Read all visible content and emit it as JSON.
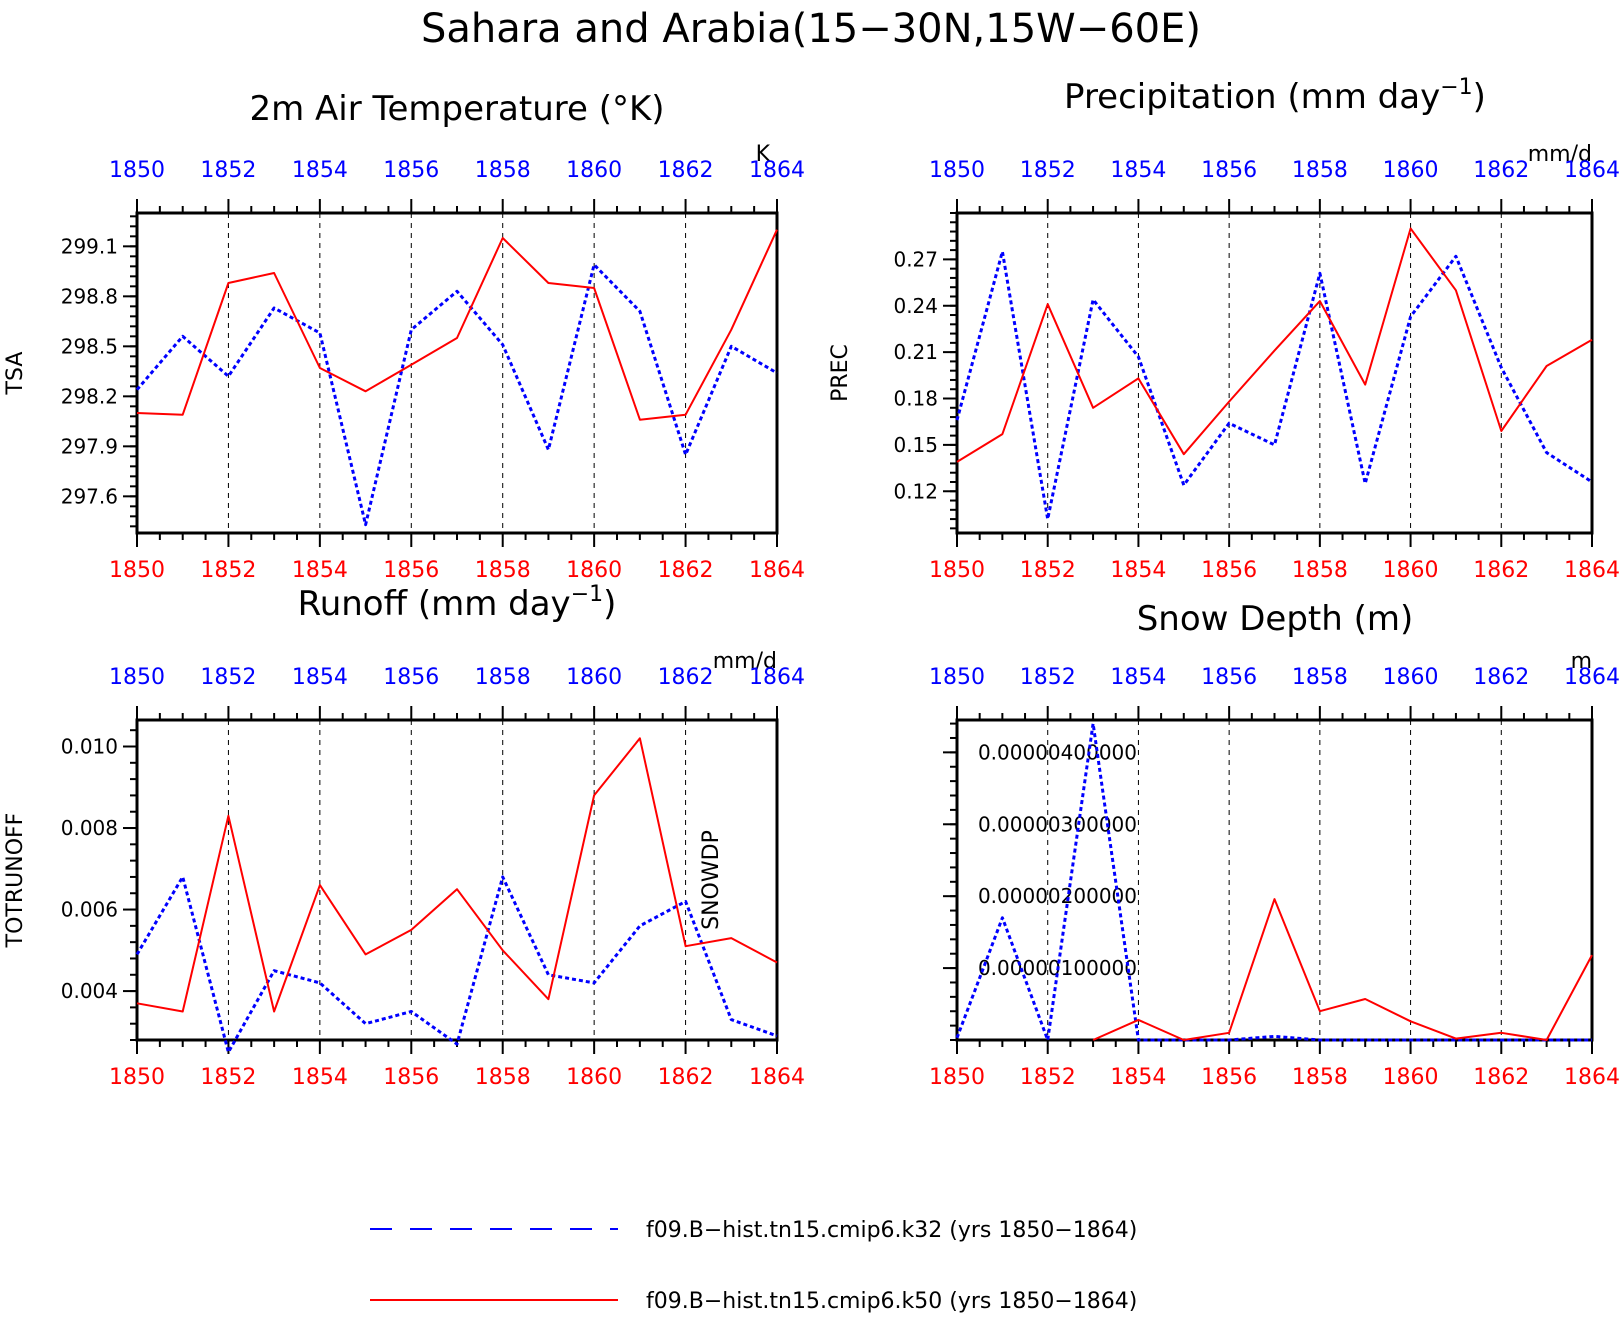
{
  "figure_title": "Sahara and Arabia(15−30N,15W−60E)",
  "colors": {
    "k32": "#0000ff",
    "k50": "#ff0000",
    "top_ticks": "#0000ff",
    "bottom_ticks": "#ff0000"
  },
  "legend": {
    "entries": [
      {
        "label": "f09.B−hist.tn15.cmip6.k32 (yrs 1850−1864)",
        "style": "dashed-blue"
      },
      {
        "label": "f09.B−hist.tn15.cmip6.k50 (yrs 1850−1864)",
        "style": "solid-red"
      }
    ]
  },
  "chart_data": [
    {
      "type": "line",
      "title": "2m Air Temperature (°K)",
      "ylabel": "TSA",
      "unit": "K",
      "xlim": [
        1850,
        1864
      ],
      "ylim": [
        297.38,
        299.3
      ],
      "x_ticks": [
        "1850",
        "1852",
        "1854",
        "1856",
        "1858",
        "1860",
        "1862",
        "1864"
      ],
      "y_ticks": [
        "297.6",
        "297.9",
        "298.2",
        "298.5",
        "298.8",
        "299.1"
      ],
      "grid": "vertical dashed at major x ticks",
      "x": [
        1850,
        1851,
        1852,
        1853,
        1854,
        1855,
        1856,
        1857,
        1858,
        1859,
        1860,
        1861,
        1862,
        1863,
        1864
      ],
      "series": [
        {
          "name": "f09.B−hist.tn15.cmip6.k32",
          "style": "dashed",
          "values": [
            298.24,
            298.56,
            298.32,
            298.73,
            298.58,
            297.43,
            298.6,
            298.83,
            298.51,
            297.88,
            298.99,
            298.71,
            297.85,
            298.5,
            298.34
          ]
        },
        {
          "name": "f09.B−hist.tn15.cmip6.k50",
          "style": "solid",
          "values": [
            298.1,
            298.09,
            298.88,
            298.94,
            298.37,
            298.23,
            298.39,
            298.55,
            299.15,
            298.88,
            298.85,
            298.06,
            298.09,
            298.6,
            299.2
          ]
        }
      ]
    },
    {
      "type": "line",
      "title": "Precipitation (mm day",
      "title_superscript": "−1",
      "title_suffix": ")",
      "ylabel": "PREC",
      "unit": "mm/d",
      "xlim": [
        1850,
        1864
      ],
      "ylim": [
        0.093,
        0.3
      ],
      "x_ticks": [
        "1850",
        "1852",
        "1854",
        "1856",
        "1858",
        "1860",
        "1862",
        "1864"
      ],
      "y_ticks": [
        "0.12",
        "0.15",
        "0.18",
        "0.21",
        "0.24",
        "0.27"
      ],
      "grid": "vertical dashed at major x ticks",
      "x": [
        1850,
        1851,
        1852,
        1853,
        1854,
        1855,
        1856,
        1857,
        1858,
        1859,
        1860,
        1861,
        1862,
        1863,
        1864
      ],
      "series": [
        {
          "name": "f09.B−hist.tn15.cmip6.k32",
          "style": "dashed",
          "values": [
            0.166,
            0.275,
            0.102,
            0.244,
            0.207,
            0.124,
            0.164,
            0.15,
            0.261,
            0.125,
            0.233,
            0.272,
            0.2,
            0.145,
            0.126
          ]
        },
        {
          "name": "f09.B−hist.tn15.cmip6.k50",
          "style": "solid",
          "values": [
            0.139,
            0.157,
            0.241,
            0.174,
            0.193,
            0.144,
            0.178,
            0.211,
            0.243,
            0.189,
            0.29,
            0.25,
            0.159,
            0.201,
            0.218
          ]
        }
      ]
    },
    {
      "type": "line",
      "title": "Runoff (mm day",
      "title_superscript": "−1",
      "title_suffix": ")",
      "ylabel": "TOTRUNOFF",
      "unit": "mm/d",
      "xlim": [
        1850,
        1864
      ],
      "ylim": [
        0.0028,
        0.01065
      ],
      "x_ticks": [
        "1850",
        "1852",
        "1854",
        "1856",
        "1858",
        "1860",
        "1862",
        "1864"
      ],
      "y_ticks": [
        "0.004",
        "0.006",
        "0.008",
        "0.010"
      ],
      "grid": "vertical dashed at major x ticks",
      "x": [
        1850,
        1851,
        1852,
        1853,
        1854,
        1855,
        1856,
        1857,
        1858,
        1859,
        1860,
        1861,
        1862,
        1863,
        1864
      ],
      "series": [
        {
          "name": "f09.B−hist.tn15.cmip6.k32",
          "style": "dashed",
          "values": [
            0.0049,
            0.0068,
            0.0025,
            0.0045,
            0.0042,
            0.0032,
            0.0035,
            0.0027,
            0.0068,
            0.0044,
            0.0042,
            0.0056,
            0.0062,
            0.0033,
            0.0029
          ]
        },
        {
          "name": "f09.B−hist.tn15.cmip6.k50",
          "style": "solid",
          "values": [
            0.0037,
            0.0035,
            0.0083,
            0.0035,
            0.0066,
            0.0049,
            0.0055,
            0.0065,
            0.005,
            0.0038,
            0.0088,
            0.0102,
            0.0051,
            0.0053,
            0.0047
          ]
        }
      ]
    },
    {
      "type": "line",
      "title": "Snow Depth (m)",
      "ylabel": "SNOWDP",
      "unit": "m",
      "xlim": [
        1850,
        1864
      ],
      "ylim": [
        0,
        4.45e-06
      ],
      "x_ticks": [
        "1850",
        "1852",
        "1854",
        "1856",
        "1858",
        "1860",
        "1862",
        "1864"
      ],
      "y_ticks": [
        "0.00000100000",
        "0.00000200000",
        "0.00000300000",
        "0.00000400000"
      ],
      "y_tick_values": [
        1e-06,
        2e-06,
        3e-06,
        4e-06
      ],
      "grid": "vertical dashed at major x ticks",
      "x": [
        1850,
        1851,
        1852,
        1853,
        1854,
        1855,
        1856,
        1857,
        1858,
        1859,
        1860,
        1861,
        1862,
        1863,
        1864
      ],
      "series": [
        {
          "name": "f09.B−hist.tn15.cmip6.k32",
          "style": "dashed",
          "values": [
            3e-08,
            1.7e-06,
            0,
            4.4e-06,
            0,
            0,
            0,
            5e-08,
            0,
            0,
            0,
            0,
            0,
            0,
            0
          ]
        },
        {
          "name": "f09.B−hist.tn15.cmip6.k50",
          "style": "solid",
          "values": [
            null,
            null,
            null,
            0,
            2.8e-07,
            0,
            1e-07,
            1.96e-06,
            4e-07,
            5.7e-07,
            2.6e-07,
            2e-08,
            1e-07,
            0,
            1.18e-06
          ]
        }
      ]
    }
  ]
}
